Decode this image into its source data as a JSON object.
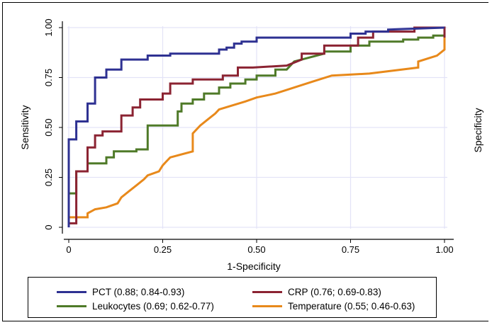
{
  "chart_data": {
    "type": "line",
    "title": "",
    "xlabel": "1-Specificity",
    "ylabel": "Sensitivity",
    "y2label": "Specificity",
    "xlim": [
      0,
      1
    ],
    "ylim": [
      0,
      1
    ],
    "grid": true,
    "legend_position": "bottom",
    "x_ticks": [
      0,
      0.25,
      0.5,
      0.75,
      1.0
    ],
    "x_tick_labels": [
      "0",
      "0.25",
      "0.50",
      "0.75",
      "1.00"
    ],
    "y_ticks": [
      0,
      0.25,
      0.5,
      0.75,
      1.0
    ],
    "y_tick_labels": [
      "0",
      "0.25",
      "0.50",
      "0.75",
      "1.00"
    ],
    "series": [
      {
        "name": "PCT (0.88; 0.84-0.93)",
        "color": "#2e3192",
        "x": [
          0,
          0,
          0.01,
          0.01,
          0.02,
          0.02,
          0.05,
          0.05,
          0.07,
          0.07,
          0.1,
          0.1,
          0.14,
          0.14,
          0.21,
          0.21,
          0.27,
          0.27,
          0.4,
          0.4,
          0.42,
          0.42,
          0.44,
          0.44,
          0.46,
          0.46,
          0.5,
          0.5,
          0.75,
          0.75,
          0.79,
          0.79,
          0.85,
          0.85,
          1.0
        ],
        "y": [
          0,
          0.44,
          0.44,
          0.44,
          0.44,
          0.53,
          0.53,
          0.62,
          0.62,
          0.75,
          0.75,
          0.79,
          0.79,
          0.84,
          0.84,
          0.86,
          0.86,
          0.87,
          0.87,
          0.89,
          0.89,
          0.9,
          0.9,
          0.92,
          0.92,
          0.93,
          0.93,
          0.95,
          0.95,
          0.97,
          0.97,
          0.98,
          0.98,
          0.99,
          1.0
        ]
      },
      {
        "name": "CRP (0.76; 0.69-0.83)",
        "color": "#8b2332",
        "x": [
          0,
          0.02,
          0.02,
          0.05,
          0.05,
          0.07,
          0.07,
          0.09,
          0.09,
          0.14,
          0.14,
          0.17,
          0.17,
          0.19,
          0.19,
          0.25,
          0.25,
          0.27,
          0.27,
          0.33,
          0.33,
          0.41,
          0.41,
          0.45,
          0.45,
          0.49,
          0.49,
          0.58,
          0.62,
          0.62,
          0.68,
          0.68,
          0.77,
          0.77,
          0.81,
          0.81,
          0.92,
          0.92,
          1.0,
          1.0
        ],
        "y": [
          0.02,
          0.02,
          0.28,
          0.28,
          0.4,
          0.4,
          0.46,
          0.46,
          0.48,
          0.48,
          0.56,
          0.56,
          0.6,
          0.6,
          0.64,
          0.64,
          0.67,
          0.67,
          0.72,
          0.72,
          0.74,
          0.74,
          0.76,
          0.76,
          0.8,
          0.8,
          0.8,
          0.81,
          0.84,
          0.87,
          0.87,
          0.91,
          0.91,
          0.95,
          0.95,
          0.98,
          0.98,
          1.0,
          1.0,
          0.95
        ]
      },
      {
        "name": "Leukocytes (0.69; 0.62-0.77)",
        "color": "#4f7a28",
        "x": [
          0,
          0.02,
          0.02,
          0.05,
          0.05,
          0.1,
          0.1,
          0.12,
          0.12,
          0.18,
          0.18,
          0.21,
          0.21,
          0.29,
          0.29,
          0.3,
          0.3,
          0.33,
          0.33,
          0.36,
          0.36,
          0.4,
          0.4,
          0.43,
          0.43,
          0.47,
          0.47,
          0.5,
          0.5,
          0.55,
          0.55,
          0.58,
          0.6,
          0.62,
          0.68,
          0.68,
          0.75,
          0.75,
          0.8,
          0.8,
          0.89,
          0.89,
          0.93,
          0.93,
          0.97,
          0.97,
          1.0,
          1.0
        ],
        "y": [
          0.17,
          0.17,
          0.28,
          0.28,
          0.32,
          0.32,
          0.35,
          0.35,
          0.38,
          0.38,
          0.39,
          0.39,
          0.51,
          0.51,
          0.58,
          0.58,
          0.62,
          0.62,
          0.64,
          0.64,
          0.67,
          0.67,
          0.7,
          0.7,
          0.72,
          0.72,
          0.74,
          0.74,
          0.76,
          0.76,
          0.79,
          0.79,
          0.83,
          0.84,
          0.87,
          0.88,
          0.88,
          0.91,
          0.91,
          0.93,
          0.93,
          0.94,
          0.94,
          0.95,
          0.95,
          0.96,
          0.96,
          0.98
        ]
      },
      {
        "name": "Temperature (0.55; 0.46-0.63)",
        "color": "#e8891b",
        "x": [
          0,
          0,
          0.02,
          0.05,
          0.05,
          0.07,
          0.1,
          0.13,
          0.14,
          0.16,
          0.18,
          0.2,
          0.21,
          0.24,
          0.25,
          0.26,
          0.27,
          0.33,
          0.33,
          0.35,
          0.37,
          0.39,
          0.4,
          0.47,
          0.5,
          0.55,
          0.6,
          0.65,
          0.7,
          0.8,
          0.93,
          0.93,
          0.98,
          1.0,
          1.0
        ],
        "y": [
          0.01,
          0.05,
          0.05,
          0.05,
          0.07,
          0.09,
          0.1,
          0.12,
          0.15,
          0.18,
          0.21,
          0.24,
          0.26,
          0.28,
          0.31,
          0.33,
          0.35,
          0.38,
          0.47,
          0.51,
          0.54,
          0.57,
          0.59,
          0.63,
          0.65,
          0.67,
          0.7,
          0.73,
          0.76,
          0.77,
          0.8,
          0.83,
          0.86,
          0.89,
          1.0
        ]
      }
    ]
  }
}
